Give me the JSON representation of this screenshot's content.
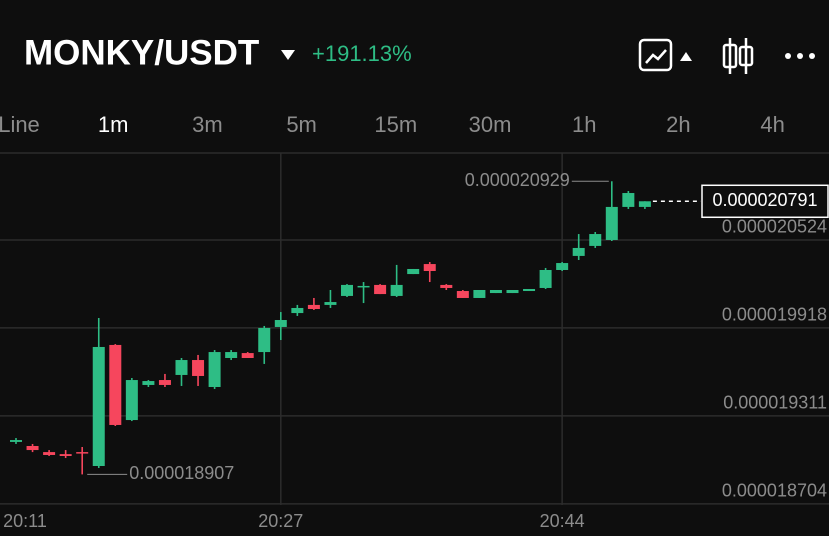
{
  "header": {
    "pair": "MONKY/USDT",
    "change": "+191.13%"
  },
  "tabs": [
    "Line",
    "1m",
    "3m",
    "5m",
    "15m",
    "30m",
    "1h",
    "2h",
    "4h"
  ],
  "active_tab": 1,
  "chart_data": {
    "type": "candlestick",
    "categories": [
      "20:11",
      null,
      null,
      null,
      null,
      null,
      null,
      null,
      null,
      null,
      null,
      null,
      null,
      null,
      null,
      null,
      "20:27",
      null,
      null,
      null,
      null,
      null,
      null,
      null,
      null,
      null,
      null,
      null,
      null,
      null,
      null,
      null,
      null,
      "20:44",
      null,
      null,
      null,
      null,
      null
    ],
    "open": [
      1.9131e-05,
      1.9103e-05,
      1.9061e-05,
      1.9047e-05,
      1.9061e-05,
      1.8965e-05,
      1.98e-05,
      1.9282e-05,
      1.9524e-05,
      1.9558e-05,
      1.9593e-05,
      1.9696e-05,
      1.951e-05,
      1.971e-05,
      1.9744e-05,
      1.9751e-05,
      1.9924e-05,
      2.002e-05,
      2.0076e-05,
      2.0076e-05,
      2.0138e-05,
      2.02e-05,
      2.0214e-05,
      2.0138e-05,
      2.0289e-05,
      2.0358e-05,
      2.0214e-05,
      2.0172e-05,
      2.0124e-05,
      2.0158e-05,
      2.0158e-05,
      2.0172e-05,
      2.0193e-05,
      2.0317e-05,
      2.0414e-05,
      2.0483e-05,
      2.0524e-05,
      2.0752e-05,
      2.0752e-05
    ],
    "high": [
      1.9158e-05,
      1.9117e-05,
      1.9075e-05,
      1.9075e-05,
      1.9096e-05,
      1.9986e-05,
      1.9806e-05,
      1.9572e-05,
      1.9558e-05,
      1.96e-05,
      1.971e-05,
      1.9731e-05,
      1.9765e-05,
      1.9765e-05,
      1.9751e-05,
      1.9931e-05,
      2.0027e-05,
      2.0076e-05,
      2.0124e-05,
      2.0179e-05,
      2.022e-05,
      2.0234e-05,
      2.022e-05,
      2.0352e-05,
      2.0324e-05,
      2.0372e-05,
      2.022e-05,
      2.0179e-05,
      2.0179e-05,
      2.0179e-05,
      2.0179e-05,
      2.0186e-05,
      2.0331e-05,
      2.0372e-05,
      2.0565e-05,
      2.0579e-05,
      2.0929e-05,
      2.0862e-05,
      2.0791e-05
    ],
    "low": [
      1.9117e-05,
      1.9061e-05,
      1.9034e-05,
      1.902e-05,
      1.8907e-05,
      1.8951e-05,
      1.9241e-05,
      1.9275e-05,
      1.951e-05,
      1.951e-05,
      1.9517e-05,
      1.9517e-05,
      1.9496e-05,
      1.9696e-05,
      1.971e-05,
      1.9669e-05,
      1.9834e-05,
      2e-05,
      2.0041e-05,
      2.0055e-05,
      2.0131e-05,
      2.0089e-05,
      2.0151e-05,
      2.0131e-05,
      2.0289e-05,
      2.0234e-05,
      2.0179e-05,
      2.0124e-05,
      2.0124e-05,
      2.0158e-05,
      2.0158e-05,
      2.0172e-05,
      2.0186e-05,
      2.031e-05,
      2.0386e-05,
      2.0469e-05,
      2.0517e-05,
      2.0738e-05,
      2.0738e-05
    ],
    "close": [
      1.9144e-05,
      1.9075e-05,
      1.9041e-05,
      1.9034e-05,
      1.9054e-05,
      1.9786e-05,
      1.9248e-05,
      1.9558e-05,
      1.9551e-05,
      1.9524e-05,
      1.9696e-05,
      1.9586e-05,
      1.9751e-05,
      1.9751e-05,
      1.971e-05,
      1.9917e-05,
      1.9972e-05,
      2.0055e-05,
      2.0048e-05,
      2.0096e-05,
      2.0214e-05,
      2.0207e-05,
      2.0151e-05,
      2.0214e-05,
      2.0324e-05,
      2.031e-05,
      2.0193e-05,
      2.0124e-05,
      2.0179e-05,
      2.0179e-05,
      2.0179e-05,
      2.0186e-05,
      2.0317e-05,
      2.0365e-05,
      2.0469e-05,
      2.0565e-05,
      2.0752e-05,
      2.0848e-05,
      2.0791e-05
    ],
    "up_color": "#2ebd85",
    "down_color": "#f6465d",
    "ylim": [
      1.8696e-05,
      2.1124e-05
    ],
    "yticks": [
      2.0524e-05,
      1.9918e-05,
      1.9311e-05,
      1.8704e-05
    ],
    "grid": true,
    "high_label": 2.0929e-05,
    "low_label": 1.8907e-05,
    "last_price": 2.0791e-05
  }
}
